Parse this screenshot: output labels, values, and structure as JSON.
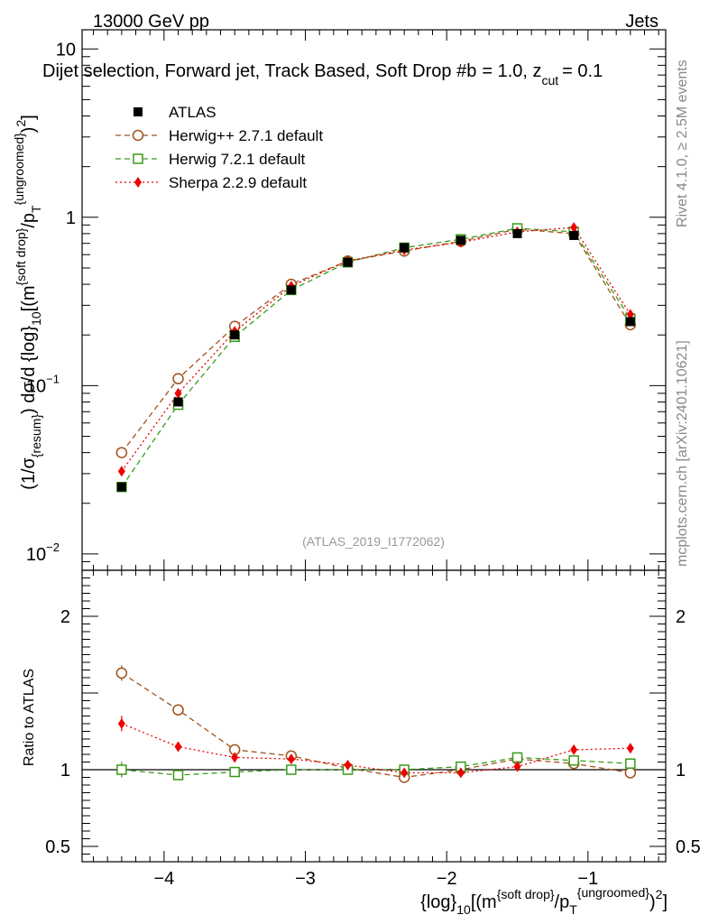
{
  "header": {
    "left": "13000 GeV pp",
    "right": "Jets",
    "title": "Dijet selection, Forward jet, Track Based, Soft Drop #b",
    "title_tail": "= 1.0, z",
    "title_sub": "cut",
    "title_end": "= 0.1"
  },
  "side_labels": {
    "rivet": "Rivet 4.1.0, ≥ 2.5M events",
    "mcplots": "mcplots.cern.ch [arXiv:2401.10621]"
  },
  "watermark": "(ATLAS_2019_I1772062)",
  "colors": {
    "data": "#000000",
    "herwigpp": "#a0521b",
    "herwig7": "#3a9a1a",
    "sherpa": "#ee0000",
    "watermark": "#999999",
    "side": "#888888"
  },
  "chart_data": [
    {
      "type": "line",
      "panel": "main",
      "ylabel_parts": {
        "pre": "(1/σ",
        "sub1": "{resum}",
        "mid": ") dσ/d {log}",
        "sub2": "10",
        "post": "[(m",
        "sup1": "{soft drop}",
        "slash": "/p",
        "sub3": "T",
        "sup2": "{ungroomed}",
        "close": ")",
        "sup3": "2",
        "end": "]"
      },
      "yscale": "log",
      "ylim": [
        0.008,
        13
      ],
      "xlim": [
        -4.58,
        -0.45
      ],
      "yticks": [
        0.01,
        0.1,
        1,
        10
      ],
      "ytick_labels": [
        {
          "mant": "10",
          "exp": "−2"
        },
        {
          "mant": "10",
          "exp": "−1"
        },
        {
          "mant": "1",
          "exp": ""
        },
        {
          "mant": "10",
          "exp": ""
        }
      ],
      "x": [
        -4.3,
        -3.9,
        -3.5,
        -3.1,
        -2.7,
        -2.3,
        -1.9,
        -1.5,
        -1.1,
        -0.7
      ],
      "legend": [
        {
          "key": "data",
          "label": "ATLAS"
        },
        {
          "key": "herwigpp",
          "label": "Herwig++ 2.7.1 default"
        },
        {
          "key": "herwig7",
          "label": "Herwig 7.2.1 default"
        },
        {
          "key": "sherpa",
          "label": "Sherpa 2.2.9 default"
        }
      ],
      "series": [
        {
          "key": "data",
          "name": "ATLAS",
          "marker": "square-filled",
          "values": [
            0.025,
            0.08,
            0.2,
            0.37,
            0.54,
            0.66,
            0.73,
            0.8,
            0.78,
            0.24
          ]
        },
        {
          "key": "herwigpp",
          "name": "Herwig++ 2.7.1 default",
          "marker": "circle-open",
          "line": "dashed",
          "values": [
            0.04,
            0.11,
            0.225,
            0.4,
            0.55,
            0.63,
            0.72,
            0.85,
            0.8,
            0.23
          ]
        },
        {
          "key": "herwig7",
          "name": "Herwig 7.2.1 default",
          "marker": "square-open",
          "line": "dashed",
          "values": [
            0.025,
            0.077,
            0.195,
            0.37,
            0.54,
            0.66,
            0.74,
            0.86,
            0.82,
            0.25
          ]
        },
        {
          "key": "sherpa",
          "name": "Sherpa 2.2.9 default",
          "marker": "diamond-filled",
          "line": "dotted",
          "values": [
            0.031,
            0.09,
            0.21,
            0.39,
            0.55,
            0.64,
            0.71,
            0.82,
            0.87,
            0.265
          ]
        }
      ]
    },
    {
      "type": "line",
      "panel": "ratio",
      "ylabel": "Ratio to ATLAS",
      "ylim": [
        0.4,
        2.3
      ],
      "xlim": [
        -4.58,
        -0.45
      ],
      "yticks": [
        0.5,
        1,
        2
      ],
      "ytick_labels": [
        "0.5",
        "1",
        "2"
      ],
      "xticks": [
        -4,
        -3,
        -2,
        -1
      ],
      "xtick_labels": [
        "−4",
        "−3",
        "−2",
        "−1"
      ],
      "xlabel_parts": {
        "pre": "{log}",
        "sub1": "10",
        "mid": "[(m",
        "sup1": "{soft drop}",
        "slash": "/p",
        "sub2": "T",
        "sup2": "{ungroomed}",
        "close": ")",
        "sup3": "2",
        "end": "]"
      },
      "x": [
        -4.3,
        -3.9,
        -3.5,
        -3.1,
        -2.7,
        -2.3,
        -1.9,
        -1.5,
        -1.1,
        -0.7
      ],
      "series": [
        {
          "key": "herwigpp",
          "name": "Herwig++ 2.7.1 default",
          "marker": "circle-open",
          "line": "dashed",
          "values": [
            1.63,
            1.39,
            1.13,
            1.09,
            1.01,
            0.95,
            1.0,
            1.07,
            1.04,
            0.98
          ],
          "err": [
            0.05,
            0.02,
            0.01,
            0.01,
            0.01,
            0.01,
            0.01,
            0.01,
            0.01,
            0.01
          ]
        },
        {
          "key": "herwig7",
          "name": "Herwig 7.2.1 default",
          "marker": "square-open",
          "line": "dashed",
          "values": [
            1.0,
            0.965,
            0.985,
            1.0,
            1.0,
            1.0,
            1.02,
            1.08,
            1.06,
            1.04
          ],
          "err": [
            0.05,
            0.02,
            0.01,
            0.01,
            0.01,
            0.01,
            0.01,
            0.01,
            0.01,
            0.01
          ]
        },
        {
          "key": "sherpa",
          "name": "Sherpa 2.2.9 default",
          "marker": "diamond-filled",
          "line": "dotted",
          "values": [
            1.3,
            1.15,
            1.08,
            1.07,
            1.03,
            0.98,
            0.98,
            1.02,
            1.13,
            1.14
          ],
          "err": [
            0.05,
            0.02,
            0.01,
            0.01,
            0.01,
            0.01,
            0.01,
            0.01,
            0.01,
            0.01
          ]
        }
      ]
    }
  ]
}
